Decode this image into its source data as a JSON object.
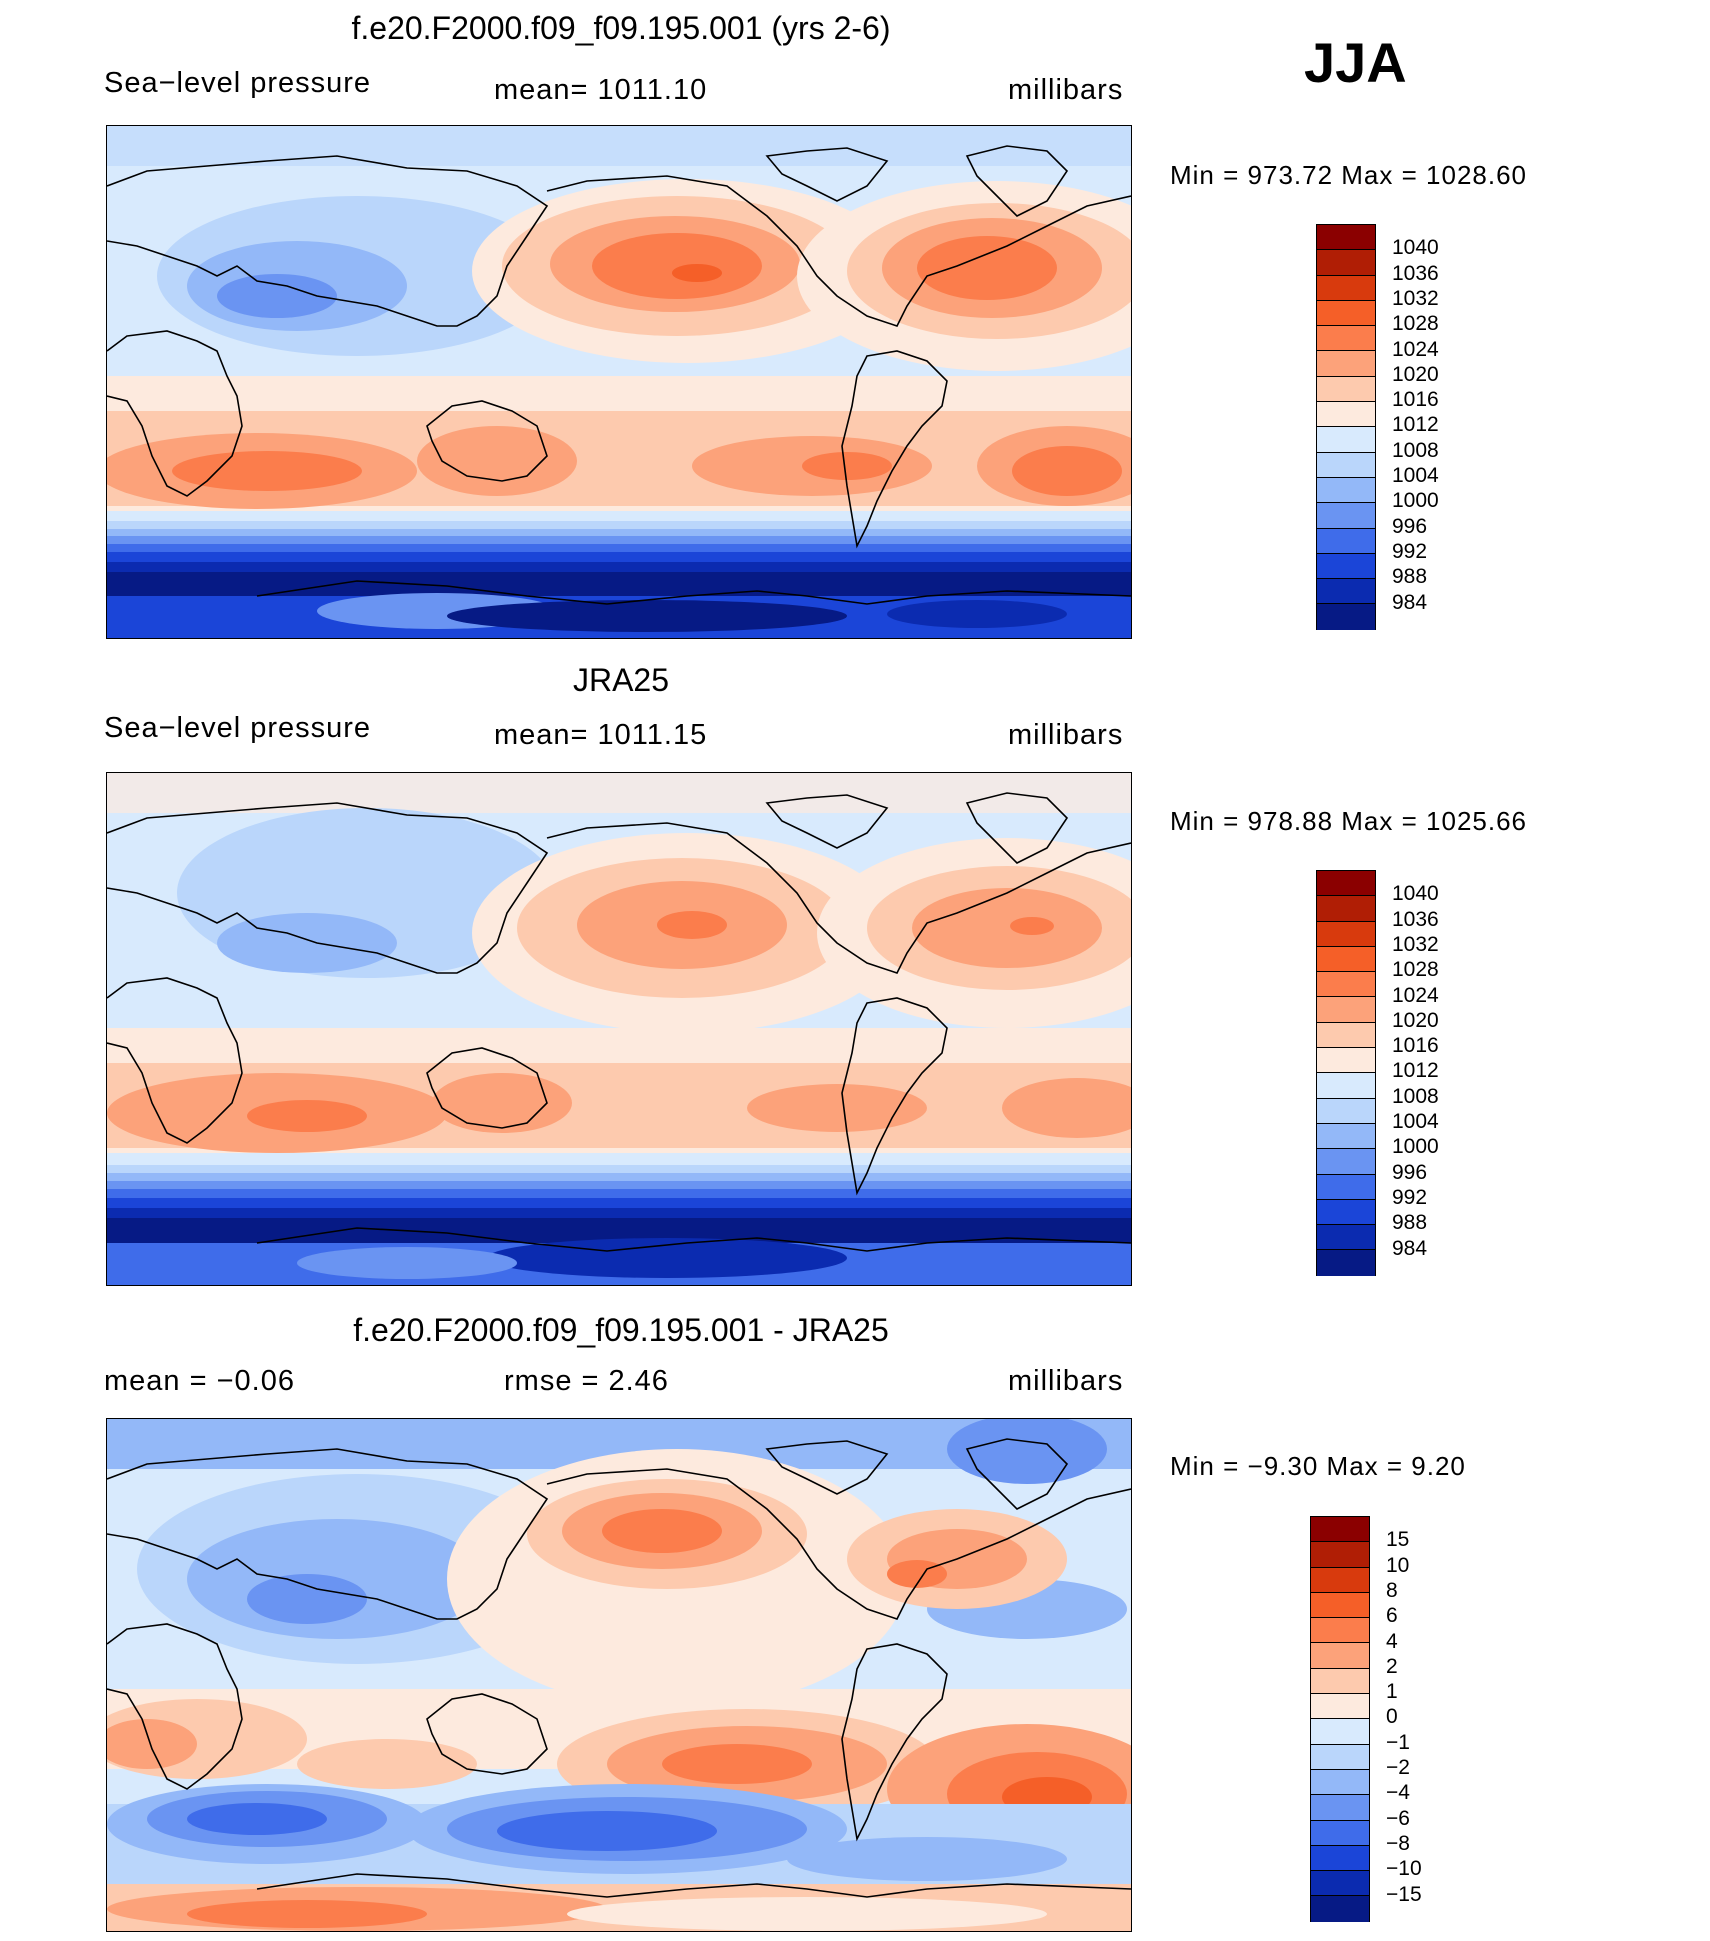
{
  "season": "JJA",
  "panels": [
    {
      "id": "model",
      "title": "f.e20.F2000.f09_f09.195.001 (yrs 2-6)",
      "left_label": "Sea−level pressure",
      "center_label": "mean=  1011.10",
      "units": "millibars",
      "minmax": "Min  =  973.72  Max  =  1028.60",
      "colorbar_labels": [
        "1040",
        "1036",
        "1032",
        "1028",
        "1024",
        "1020",
        "1016",
        "1012",
        "1008",
        "1004",
        "1000",
        "996",
        "992",
        "988",
        "984"
      ]
    },
    {
      "id": "obs",
      "title": "JRA25",
      "left_label": "Sea−level pressure",
      "center_label": "mean=  1011.15",
      "units": "millibars",
      "minmax": "Min  =  978.88  Max  =  1025.66",
      "colorbar_labels": [
        "1040",
        "1036",
        "1032",
        "1028",
        "1024",
        "1020",
        "1016",
        "1012",
        "1008",
        "1004",
        "1000",
        "996",
        "992",
        "988",
        "984"
      ]
    },
    {
      "id": "diff",
      "title": "f.e20.F2000.f09_f09.195.001 - JRA25",
      "left_label": "mean  =    −0.06",
      "center_label": "rmse  =     2.46",
      "units": "millibars",
      "minmax": "Min  =    −9.30  Max  =     9.20",
      "colorbar_labels": [
        "15",
        "10",
        "8",
        "6",
        "4",
        "2",
        "1",
        "0",
        "−1",
        "−2",
        "−4",
        "−6",
        "−8",
        "−10",
        "−15"
      ]
    }
  ],
  "colors": {
    "scale": [
      "#8b0000",
      "#b01e05",
      "#d83a0d",
      "#f55f28",
      "#fb7d4c",
      "#fca27a",
      "#fdcaae",
      "#fdeade",
      "#d8eafd",
      "#bad6fb",
      "#93b8f8",
      "#6a94f2",
      "#3f6cea",
      "#1b45d8",
      "#0b2bb0",
      "#061a85"
    ]
  },
  "chart_data": {
    "type": "contour-map",
    "variable": "Sea-level pressure",
    "units": "millibars",
    "season": "JJA"
  }
}
